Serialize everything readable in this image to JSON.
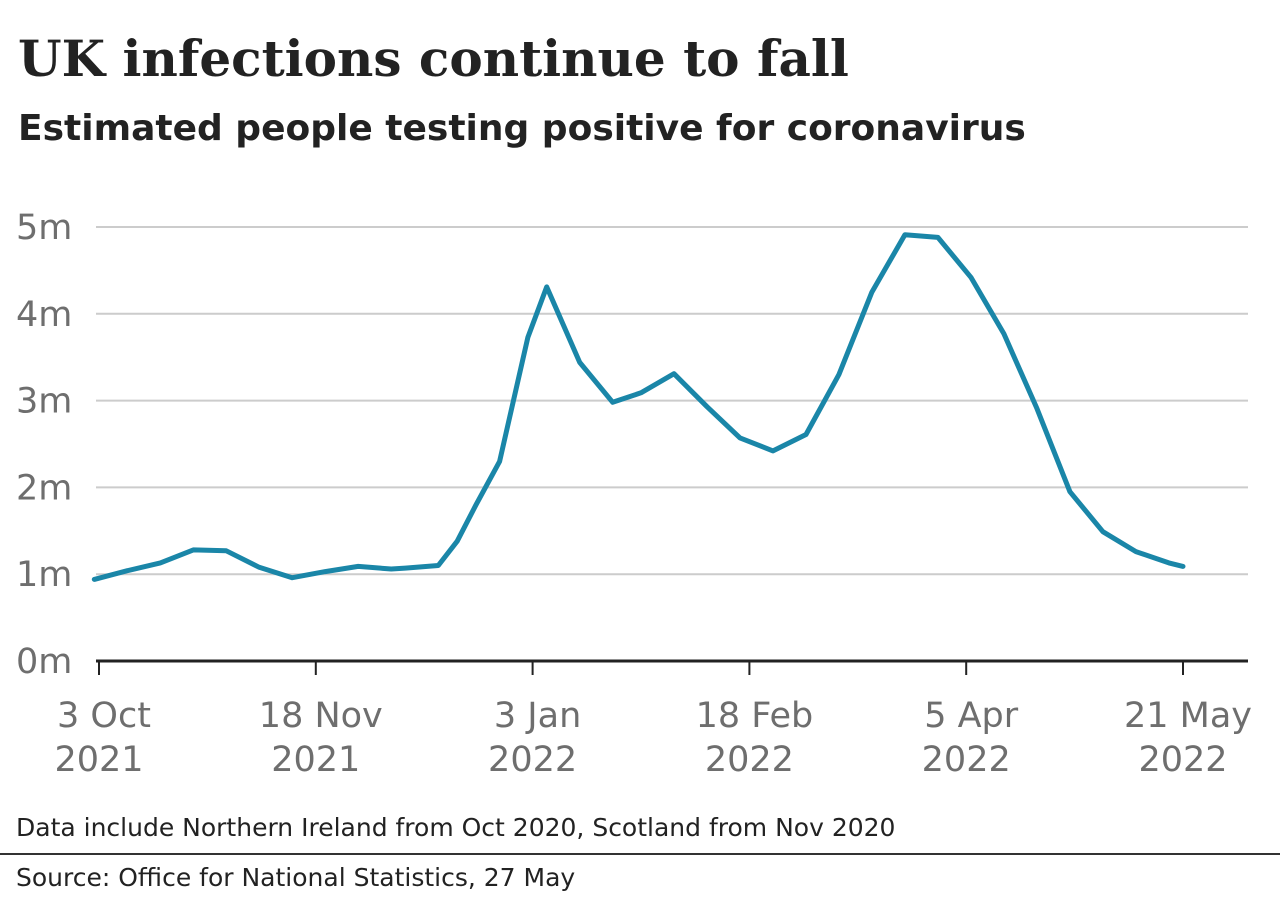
{
  "chart_data": {
    "type": "line",
    "title": "UK infections continue to fall",
    "subtitle": "Estimated people testing positive for coronavirus",
    "xlabel": "",
    "ylabel": "",
    "ylim": [
      0,
      5000000
    ],
    "grid": true,
    "y_ticks": [
      {
        "value": 0,
        "label": "0m"
      },
      {
        "value": 1000000,
        "label": "1m"
      },
      {
        "value": 2000000,
        "label": "2m"
      },
      {
        "value": 3000000,
        "label": "3m"
      },
      {
        "value": 4000000,
        "label": "4m"
      },
      {
        "value": 5000000,
        "label": "5m"
      }
    ],
    "x_ticks": [
      {
        "date": "2021-10-03",
        "line1": "3 Oct",
        "line2": "2021"
      },
      {
        "date": "2021-11-18",
        "line1": "18 Nov",
        "line2": "2021"
      },
      {
        "date": "2022-01-03",
        "line1": "3 Jan",
        "line2": "2022"
      },
      {
        "date": "2022-02-18",
        "line1": "18 Feb",
        "line2": "2022"
      },
      {
        "date": "2022-04-05",
        "line1": "5 Apr",
        "line2": "2022"
      },
      {
        "date": "2022-05-21",
        "line1": "21 May",
        "line2": "2022"
      }
    ],
    "xlim": [
      "2021-10-02",
      "2022-06-10"
    ],
    "line_color": "#1a86a8",
    "series": [
      {
        "x": [
          "2021-10-02",
          "2021-10-09",
          "2021-10-16",
          "2021-10-23",
          "2021-10-30",
          "2021-11-06",
          "2021-11-13",
          "2021-11-20",
          "2021-11-27",
          "2021-12-04",
          "2021-12-07",
          "2021-12-14",
          "2021-12-18",
          "2021-12-22",
          "2021-12-27",
          "2022-01-02",
          "2022-01-06",
          "2022-01-13",
          "2022-01-20",
          "2022-01-26",
          "2022-02-02",
          "2022-02-09",
          "2022-02-16",
          "2022-02-23",
          "2022-03-02",
          "2022-03-09",
          "2022-03-16",
          "2022-03-23",
          "2022-03-30",
          "2022-04-06",
          "2022-04-13",
          "2022-04-20",
          "2022-04-27",
          "2022-05-04",
          "2022-05-11",
          "2022-05-18",
          "2022-05-21"
        ],
        "values": [
          940000,
          1040000,
          1130000,
          1280000,
          1270000,
          1080000,
          960000,
          1030000,
          1090000,
          1060000,
          1070000,
          1100000,
          1380000,
          1800000,
          2300000,
          3730000,
          4310000,
          3440000,
          2980000,
          3090000,
          3310000,
          2930000,
          2570000,
          2420000,
          2610000,
          3300000,
          4250000,
          4910000,
          4880000,
          4420000,
          3770000,
          2910000,
          1950000,
          1490000,
          1260000,
          1130000,
          1090000
        ]
      }
    ]
  },
  "note": "Data include Northern Ireland from Oct 2020, Scotland from Nov 2020",
  "source": "Source: Office for National Statistics, 27 May"
}
